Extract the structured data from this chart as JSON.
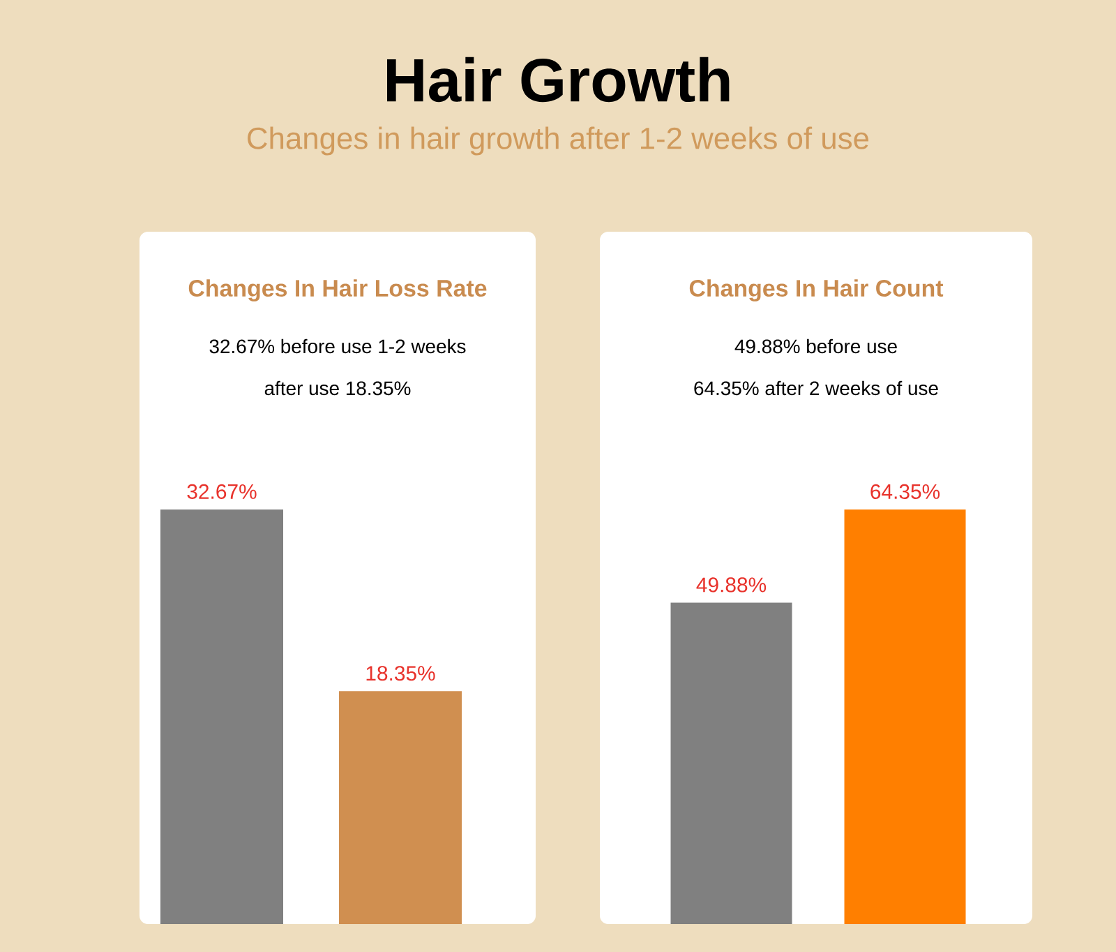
{
  "chart_data": [
    {
      "type": "bar",
      "title": "Changes In Hair Loss Rate",
      "annotations": [
        "Hair Growth",
        "Changes in hair growth after 1-2 weeks of use",
        "32.67% before use 1-2 weeks",
        "after use 18.35%"
      ],
      "categories": [
        null,
        null
      ],
      "values": [
        32.67,
        18.35
      ],
      "colors": [
        "#808080",
        "#d08f50"
      ],
      "value_labels": [
        "32.67%",
        "18.35%"
      ]
    },
    {
      "type": "bar",
      "title": "Changes In Hair Count",
      "annotations": [
        "49.88% before use",
        "64.35% after 2 weeks of use"
      ],
      "categories": [
        null,
        null
      ],
      "values": [
        49.88,
        64.35
      ],
      "colors": [
        "#808080",
        "#ff7f00"
      ],
      "value_labels": [
        "49.88%",
        "64.35%"
      ]
    }
  ]
}
